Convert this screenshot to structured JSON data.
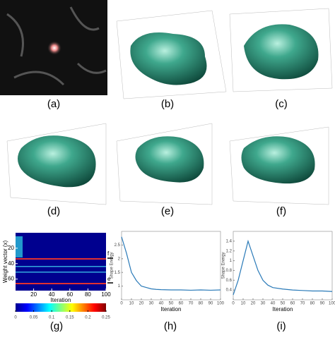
{
  "panel_labels": [
    "(a)",
    "(b)",
    "(c)",
    "(d)",
    "(e)",
    "(f)",
    "(g)",
    "(h)",
    "(i)"
  ],
  "heatmap": {
    "ylabel": "Weight vector (x)",
    "xlabel": "Iteration",
    "yticks": [
      20,
      40,
      60
    ],
    "xticks": [
      20,
      40,
      60,
      80,
      100
    ],
    "xlim": [
      0,
      100
    ],
    "ylim": [
      0,
      75
    ],
    "markers": [
      "f",
      "e"
    ],
    "colorbar_ticks": [
      0,
      0.05,
      0.1,
      0.15,
      0.2,
      0.25
    ],
    "colorbar_lim": [
      0,
      0.25
    ]
  },
  "charts": [
    {
      "type": "line",
      "xlabel": "Iteration",
      "ylabel": "Shape Energy",
      "color": "#2a7ab8",
      "xlim": [
        0,
        100
      ],
      "ylim": [
        0.5,
        3
      ],
      "xticks": [
        0,
        10,
        20,
        30,
        40,
        50,
        60,
        70,
        80,
        90,
        100
      ],
      "yticks": [
        1,
        1.5,
        2,
        2.5
      ],
      "x": [
        0,
        5,
        10,
        15,
        20,
        25,
        30,
        35,
        40,
        50,
        60,
        70,
        80,
        90,
        100
      ],
      "values": [
        2.8,
        2.2,
        1.5,
        1.2,
        1.0,
        0.95,
        0.9,
        0.88,
        0.87,
        0.86,
        0.86,
        0.85,
        0.86,
        0.85,
        0.86
      ]
    },
    {
      "type": "line",
      "xlabel": "Iteration",
      "ylabel": "Shape Energy",
      "color": "#2a7ab8",
      "xlim": [
        0,
        100
      ],
      "ylim": [
        0.2,
        1.6
      ],
      "xticks": [
        0,
        10,
        20,
        30,
        40,
        50,
        60,
        70,
        80,
        90,
        100
      ],
      "yticks": [
        0.4,
        0.6,
        0.8,
        1,
        1.2,
        1.4
      ],
      "x": [
        0,
        5,
        10,
        15,
        20,
        25,
        30,
        35,
        40,
        50,
        60,
        70,
        80,
        90,
        100
      ],
      "values": [
        0.3,
        0.6,
        1.0,
        1.4,
        1.1,
        0.8,
        0.6,
        0.5,
        0.45,
        0.42,
        0.4,
        0.39,
        0.38,
        0.38,
        0.37
      ]
    }
  ]
}
